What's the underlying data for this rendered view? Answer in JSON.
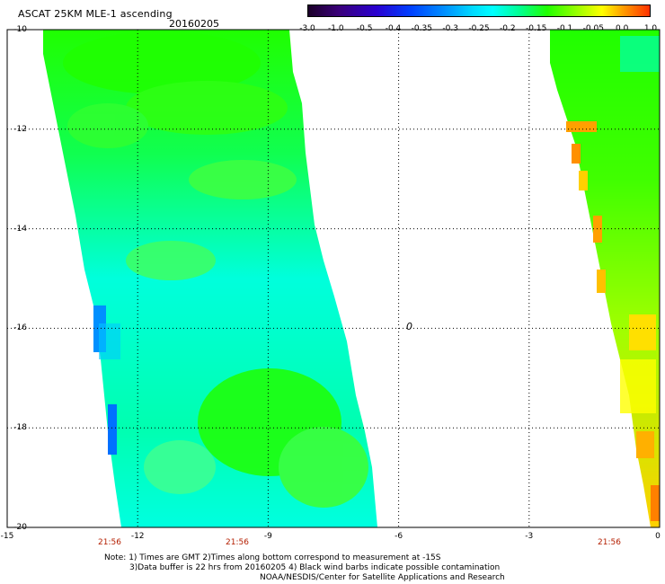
{
  "header": {
    "title": "ASCAT 25KM MLE-1 ascending",
    "date": "20160205"
  },
  "colorbar": {
    "ticks": [
      "-3.0",
      "-1.0",
      "-0.5",
      "-0.4",
      "-0.35",
      "-0.3",
      "-0.25",
      "-0.2",
      "-0.15",
      "-0.1",
      "-0.05",
      "0.0",
      "1.0"
    ],
    "colors": [
      "#1b0028",
      "#3a007a",
      "#2a00d0",
      "#0040ff",
      "#0090ff",
      "#00d8ff",
      "#00ffff",
      "#00ff90",
      "#20ff00",
      "#90ff00",
      "#ffff00",
      "#ffa000",
      "#ff3000"
    ]
  },
  "axes": {
    "y_labels": [
      "-10",
      "-12",
      "-14",
      "-16",
      "-18",
      "-20"
    ],
    "x_labels": [
      "-15",
      "-12",
      "-9",
      "-6",
      "-3",
      "0"
    ],
    "time_labels": [
      "21:56",
      "21:56",
      "21:56"
    ]
  },
  "map_marker": "0",
  "notes": {
    "line1": "Note: 1) Times are GMT 2)Times along bottom correspond to measurement at -15S",
    "line2": "3)Data buffer is 22 hrs from 20160205 4) Black wind barbs indicate possible contamination",
    "line3": "NOAA/NESDIS/Center for Satellite Applications and Research"
  },
  "style": {
    "time_label_color": "#b41e00",
    "swath_colors": [
      "#00ffdc",
      "#00ff90",
      "#20ff00",
      "#ffff00",
      "#ffa000"
    ]
  }
}
